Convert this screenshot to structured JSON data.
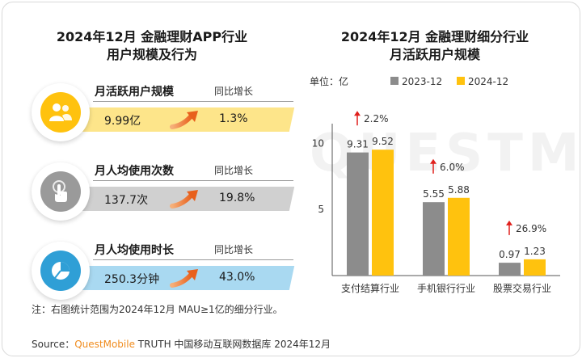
{
  "left_panel": {
    "title_line1": "2024年12月 金融理财APP行业",
    "title_line2": "用户规模及行为",
    "metrics": [
      {
        "label": "月活跃用户规模",
        "yoy_label": "同比增长",
        "value": "9.99亿",
        "yoy": "1.3%",
        "icon": "users-icon",
        "color": "#fde58a"
      },
      {
        "label": "月人均使用次数",
        "yoy_label": "同比增长",
        "value": "137.7次",
        "yoy": "19.8%",
        "icon": "tap-hand-icon",
        "color": "#d0d0d0"
      },
      {
        "label": "月人均使用时长",
        "yoy_label": "同比增长",
        "value": "250.3分钟",
        "yoy": "43.0%",
        "icon": "pie-clock-icon",
        "color": "#a9d9f1"
      }
    ]
  },
  "right_panel": {
    "title_line1": "2024年12月 金融理财细分行业",
    "title_line2": "月活跃用户规模"
  },
  "chart_data": {
    "type": "bar",
    "title": "2024年12月 金融理财细分行业 月活跃用户规模",
    "unit_label": "单位：亿",
    "categories": [
      "支付结算行业",
      "手机银行行业",
      "股票交易行业"
    ],
    "series": [
      {
        "name": "2023-12",
        "values": [
          9.31,
          5.55,
          0.97
        ],
        "color": "#8c8c8c"
      },
      {
        "name": "2024-12",
        "values": [
          9.52,
          5.88,
          1.23
        ],
        "color": "#ffc20e"
      }
    ],
    "growth_labels": [
      "2.2%",
      "6.0%",
      "26.9%"
    ],
    "ylim": [
      0,
      11
    ],
    "yticks": [
      5,
      10
    ],
    "legend_position": "top",
    "grid": false
  },
  "note": "注：右图统计范围为2024年12月 MAU≥1亿的细分行业。",
  "source": {
    "prefix": "Source：",
    "brand": "QuestMobile",
    "suffix": " TRUTH 中国移动互联网数据库 2024年12月"
  },
  "watermark": "QUESTMOBILE"
}
